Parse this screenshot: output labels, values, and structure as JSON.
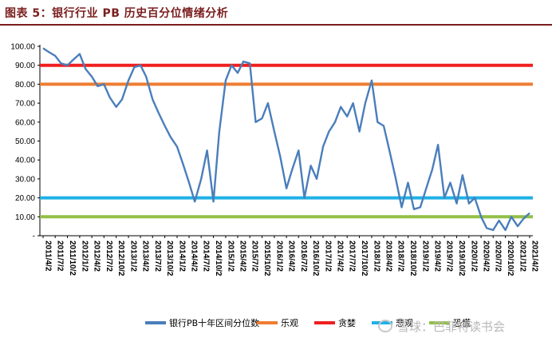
{
  "title": "图表 5：银行行业 PB 历史百分位情绪分析",
  "watermark": "雪球：巴菲特读书会",
  "chart_data": {
    "type": "line",
    "ylim": [
      0,
      100
    ],
    "y_ticks": [
      "100.00",
      "90.00",
      "80.00",
      "70.00",
      "60.00",
      "50.00",
      "40.00",
      "30.00",
      "20.00",
      "10.00",
      "-"
    ],
    "x_ticks": [
      "2011/4/2",
      "2011/7/2",
      "2011/10/2",
      "2012/1/2",
      "2012/4/2",
      "2012/7/2",
      "2012/10/2",
      "2013/1/2",
      "2013/4/2",
      "2013/7/2",
      "2013/10/2",
      "2014/1/2",
      "2014/4/2",
      "2014/7/2",
      "2014/10/2",
      "2015/1/2",
      "2015/4/2",
      "2015/7/2",
      "2015/10/2",
      "2016/1/2",
      "2016/4/2",
      "2016/7/2",
      "2016/10/2",
      "2017/1/2",
      "2017/4/2",
      "2017/7/2",
      "2017/10/2",
      "2018/1/2",
      "2018/4/2",
      "2018/7/2",
      "2018/10/2",
      "2019/1/2",
      "2019/4/2",
      "2019/7/2",
      "2019/10/2",
      "2020/1/2",
      "2020/4/2",
      "2020/7/2",
      "2020/10/2",
      "2021/1/2",
      "2021/4/2"
    ],
    "series": [
      {
        "name": "银行PB十年区间分位数",
        "color": "#4a7ebb",
        "x": [
          "2011/4/2",
          "2011/5/15",
          "2011/7/2",
          "2011/8/15",
          "2011/10/2",
          "2011/11/15",
          "2012/1/2",
          "2012/2/15",
          "2012/4/2",
          "2012/5/15",
          "2012/7/2",
          "2012/8/15",
          "2012/10/2",
          "2012/11/15",
          "2013/1/2",
          "2013/2/15",
          "2013/4/2",
          "2013/5/15",
          "2013/7/2",
          "2013/8/15",
          "2013/10/2",
          "2013/11/15",
          "2014/1/2",
          "2014/2/15",
          "2014/4/2",
          "2014/5/15",
          "2014/7/2",
          "2014/8/15",
          "2014/10/2",
          "2014/11/15",
          "2015/1/2",
          "2015/2/15",
          "2015/4/2",
          "2015/5/15",
          "2015/7/2",
          "2015/8/15",
          "2015/10/2",
          "2015/11/15",
          "2016/1/2",
          "2016/2/15",
          "2016/4/2",
          "2016/5/15",
          "2016/7/2",
          "2016/8/15",
          "2016/10/2",
          "2016/11/15",
          "2017/1/2",
          "2017/2/15",
          "2017/4/2",
          "2017/5/15",
          "2017/7/2",
          "2017/8/15",
          "2017/10/2",
          "2017/11/15",
          "2018/1/2",
          "2018/2/15",
          "2018/4/2",
          "2018/5/15",
          "2018/7/2",
          "2018/8/15",
          "2018/10/2",
          "2018/11/15",
          "2019/1/2",
          "2019/2/15",
          "2019/4/2",
          "2019/5/15",
          "2019/7/2",
          "2019/8/15",
          "2019/10/2",
          "2019/11/15",
          "2020/1/2",
          "2020/2/15",
          "2020/4/2",
          "2020/5/15",
          "2020/7/2",
          "2020/8/15",
          "2020/10/2",
          "2020/11/15",
          "2021/1/2",
          "2021/2/15",
          "2021/4/2"
        ],
        "y": [
          99,
          97,
          95,
          91,
          90,
          93,
          96,
          88,
          84,
          79,
          80,
          73,
          68,
          72,
          82,
          89,
          90,
          84,
          72,
          65,
          58,
          52,
          47,
          38,
          28,
          18,
          30,
          45,
          18,
          55,
          82,
          90,
          86,
          92,
          91,
          60,
          62,
          70,
          55,
          42,
          25,
          35,
          45,
          20,
          37,
          30,
          47,
          55,
          60,
          68,
          63,
          70,
          55,
          70,
          82,
          60,
          58,
          45,
          30,
          15,
          28,
          14,
          15,
          25,
          35,
          48,
          20,
          28,
          17,
          32,
          17,
          20,
          10,
          4,
          3,
          8,
          3,
          10,
          5,
          9,
          12
        ]
      }
    ],
    "reference_lines": [
      {
        "name": "乐观",
        "value": 80,
        "color": "#ee7d31"
      },
      {
        "name": "贪婪",
        "value": 90,
        "color": "#ef1f1f"
      },
      {
        "name": "悲观",
        "value": 20,
        "color": "#1fb1e6"
      },
      {
        "name": "恐慌",
        "value": 10,
        "color": "#92c047"
      }
    ],
    "legend": {
      "placement": "bottom"
    },
    "grid": false
  }
}
